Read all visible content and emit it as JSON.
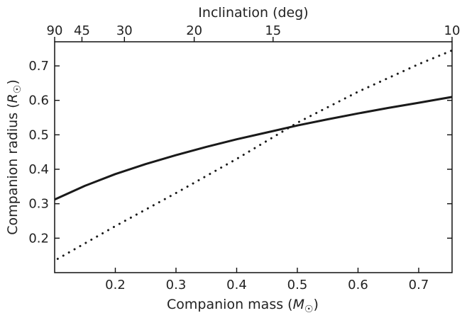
{
  "chart_data": {
    "type": "line",
    "title": "",
    "xlabel": "Companion mass (",
    "xlabel_symbol": "M",
    "xlabel_close": ")",
    "ylabel": "Companion radius (",
    "ylabel_symbol": "R",
    "ylabel_close": ")",
    "sun_symbol": "☉",
    "top_xlabel": "Inclination (deg)",
    "xlim": [
      0.1,
      0.755
    ],
    "ylim": [
      0.1,
      0.77
    ],
    "grid": false,
    "legend": "none",
    "xticks": [
      {
        "value": 0.2,
        "label": "0.2"
      },
      {
        "value": 0.3,
        "label": "0.3"
      },
      {
        "value": 0.4,
        "label": "0.4"
      },
      {
        "value": 0.5,
        "label": "0.5"
      },
      {
        "value": 0.6,
        "label": "0.6"
      },
      {
        "value": 0.7,
        "label": "0.7"
      }
    ],
    "yticks": [
      {
        "value": 0.2,
        "label": "0.2"
      },
      {
        "value": 0.3,
        "label": "0.3"
      },
      {
        "value": 0.4,
        "label": "0.4"
      },
      {
        "value": 0.5,
        "label": "0.5"
      },
      {
        "value": 0.6,
        "label": "0.6"
      },
      {
        "value": 0.7,
        "label": "0.7"
      }
    ],
    "top_ticks": [
      {
        "mass": 0.1,
        "label": "90"
      },
      {
        "mass": 0.145,
        "label": "45"
      },
      {
        "mass": 0.215,
        "label": "30"
      },
      {
        "mass": 0.33,
        "label": "20"
      },
      {
        "mass": 0.46,
        "label": "15"
      },
      {
        "mass": 0.755,
        "label": "10"
      }
    ],
    "series": [
      {
        "style": "solid",
        "color": "#1a1a1a",
        "x": [
          0.1,
          0.15,
          0.2,
          0.25,
          0.3,
          0.35,
          0.4,
          0.45,
          0.5,
          0.55,
          0.6,
          0.65,
          0.7,
          0.755
        ],
        "y": [
          0.312,
          0.352,
          0.386,
          0.415,
          0.441,
          0.465,
          0.487,
          0.507,
          0.527,
          0.545,
          0.562,
          0.578,
          0.593,
          0.61
        ]
      },
      {
        "style": "dotted",
        "color": "#1a1a1a",
        "x": [
          0.105,
          0.2,
          0.3,
          0.4,
          0.5,
          0.6,
          0.7,
          0.755
        ],
        "y": [
          0.14,
          0.235,
          0.331,
          0.43,
          0.535,
          0.625,
          0.705,
          0.745
        ]
      }
    ]
  }
}
